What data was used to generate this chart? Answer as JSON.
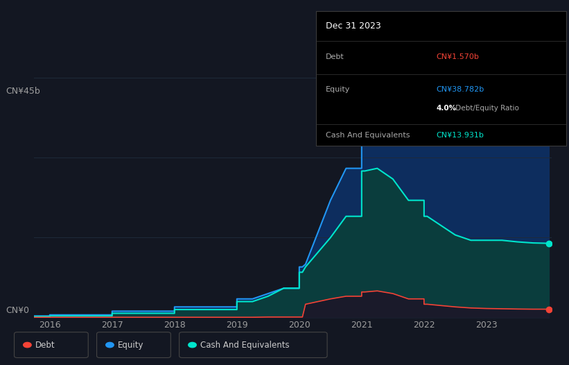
{
  "background_color": "#131722",
  "plot_bg_color": "#131722",
  "y_label_top": "CN¥45b",
  "y_label_bottom": "CN¥0",
  "x_ticks": [
    2016,
    2017,
    2018,
    2019,
    2020,
    2021,
    2022,
    2023
  ],
  "years": [
    2015.75,
    2016.0,
    2016.0,
    2016.25,
    2017.0,
    2017.0,
    2017.25,
    2018.0,
    2018.0,
    2018.25,
    2019.0,
    2019.0,
    2019.25,
    2019.5,
    2019.5,
    2019.75,
    2020.0,
    2020.0,
    2020.05,
    2020.1,
    2020.5,
    2020.75,
    2021.0,
    2021.0,
    2021.05,
    2021.25,
    2021.5,
    2021.75,
    2022.0,
    2022.0,
    2022.05,
    2022.5,
    2022.75,
    2023.0,
    2023.25,
    2023.5,
    2023.75,
    2024.0
  ],
  "equity": [
    0.3,
    0.3,
    0.5,
    0.5,
    0.5,
    1.2,
    1.2,
    1.2,
    2.0,
    2.0,
    2.0,
    3.5,
    3.5,
    4.5,
    4.5,
    5.5,
    5.5,
    9.5,
    9.5,
    10.0,
    22.0,
    28.0,
    28.0,
    40.0,
    40.0,
    42.0,
    43.5,
    44.0,
    44.0,
    44.5,
    44.5,
    43.0,
    42.5,
    42.0,
    41.5,
    40.5,
    39.5,
    38.782
  ],
  "cash": [
    0.2,
    0.2,
    0.3,
    0.3,
    0.3,
    0.8,
    0.8,
    0.8,
    1.5,
    1.5,
    1.5,
    3.0,
    3.0,
    4.0,
    4.0,
    5.5,
    5.5,
    8.5,
    8.5,
    9.5,
    15.0,
    19.0,
    19.0,
    27.5,
    27.5,
    28.0,
    26.0,
    22.0,
    22.0,
    19.0,
    19.0,
    15.5,
    14.5,
    14.5,
    14.5,
    14.2,
    14.0,
    13.931
  ],
  "debt": [
    0.05,
    0.05,
    0.05,
    0.05,
    0.05,
    0.05,
    0.05,
    0.05,
    0.05,
    0.05,
    0.05,
    0.05,
    0.05,
    0.1,
    0.1,
    0.1,
    0.1,
    0.1,
    0.1,
    2.5,
    3.5,
    4.0,
    4.0,
    4.8,
    4.8,
    5.0,
    4.5,
    3.5,
    3.5,
    2.5,
    2.5,
    2.0,
    1.8,
    1.7,
    1.65,
    1.6,
    1.57,
    1.57
  ],
  "equity_line_color": "#2196f3",
  "cash_line_color": "#00e5cc",
  "debt_line_color": "#f44336",
  "equity_fill_color": "#0d2d5e",
  "cash_fill_color": "#0a3d3d",
  "debt_fill_color": "#1a1a2a",
  "grid_color": "#1e2a3a",
  "tick_color": "#9e9e9e",
  "ylim": [
    0,
    50
  ],
  "xlim": [
    2015.75,
    2024.05
  ],
  "info_title": "Dec 31 2023",
  "info_debt_label": "Debt",
  "info_debt_value": "CN¥1.570b",
  "info_equity_label": "Equity",
  "info_equity_value": "CN¥38.782b",
  "info_ratio": "4.0% Debt/Equity Ratio",
  "info_ratio_highlight": "4.0%",
  "info_cash_label": "Cash And Equivalents",
  "info_cash_value": "CN¥13.931b",
  "legend_items": [
    {
      "label": "Debt",
      "color": "#f44336"
    },
    {
      "label": "Equity",
      "color": "#2196f3"
    },
    {
      "label": "Cash And Equivalents",
      "color": "#00e5cc"
    }
  ]
}
